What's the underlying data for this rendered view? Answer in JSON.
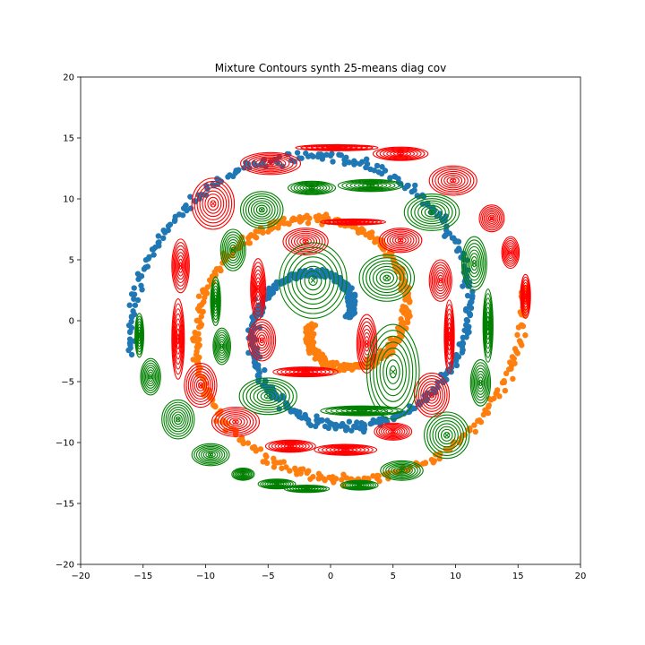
{
  "chart_data": {
    "type": "scatter",
    "title": "Mixture Contours synth 25-means diag cov",
    "xlabel": "",
    "ylabel": "",
    "xlim": [
      -20,
      20
    ],
    "ylim": [
      -20,
      20
    ],
    "x_ticks": [
      "−20",
      "−15",
      "−10",
      "−5",
      "0",
      "5",
      "10",
      "15",
      "20"
    ],
    "y_ticks": [
      "−20",
      "−15",
      "−10",
      "−5",
      "0",
      "5",
      "10",
      "15",
      "20"
    ],
    "grid": false,
    "legend": "none",
    "colors": {
      "cluster_a_points": "#1f77b4",
      "cluster_b_points": "#ff7f0e",
      "contours_a": "#ff0000",
      "contours_b": "#008000"
    },
    "series": [
      {
        "color": "#1f77b4",
        "description": "points on odd spiral arms",
        "spirals": [
          {
            "r0": 1.5,
            "r1": 16.2,
            "t0": 0.2,
            "t1": 9.6,
            "spread": 0.35,
            "n": 620
          }
        ]
      },
      {
        "color": "#ff7f0e",
        "description": "points on even spiral arms",
        "spirals": [
          {
            "r0": 1.5,
            "r1": 15.6,
            "t0": 3.34,
            "t1": 12.75,
            "spread": 0.35,
            "n": 620
          }
        ]
      }
    ],
    "components": [
      {
        "color": "#ff0000",
        "cx": 0.5,
        "cy": 14.2,
        "sx": 3.3,
        "sy": 0.25
      },
      {
        "color": "#ff0000",
        "cx": 5.6,
        "cy": 13.7,
        "sx": 2.2,
        "sy": 0.55
      },
      {
        "color": "#ff0000",
        "cx": -4.8,
        "cy": 12.9,
        "sx": 2.4,
        "sy": 0.9
      },
      {
        "color": "#ff0000",
        "cx": 9.8,
        "cy": 11.5,
        "sx": 1.9,
        "sy": 1.2
      },
      {
        "color": "#ff0000",
        "cx": -9.4,
        "cy": 9.6,
        "sx": 1.7,
        "sy": 2.1
      },
      {
        "color": "#ff0000",
        "cx": 12.9,
        "cy": 8.4,
        "sx": 1.0,
        "sy": 1.1
      },
      {
        "color": "#ff0000",
        "cx": 1.8,
        "cy": 8.1,
        "sx": 2.6,
        "sy": 0.25
      },
      {
        "color": "#ff0000",
        "cx": 5.6,
        "cy": 6.6,
        "sx": 1.7,
        "sy": 1.0
      },
      {
        "color": "#ff0000",
        "cx": -2.0,
        "cy": 6.5,
        "sx": 1.8,
        "sy": 1.1
      },
      {
        "color": "#ff0000",
        "cx": 14.4,
        "cy": 5.6,
        "sx": 0.7,
        "sy": 1.3
      },
      {
        "color": "#ff0000",
        "cx": -12.0,
        "cy": 4.5,
        "sx": 0.7,
        "sy": 2.2
      },
      {
        "color": "#ff0000",
        "cx": 8.8,
        "cy": 3.3,
        "sx": 0.9,
        "sy": 1.7
      },
      {
        "color": "#ff0000",
        "cx": 15.6,
        "cy": 2.0,
        "sx": 0.4,
        "sy": 1.8
      },
      {
        "color": "#ff0000",
        "cx": -5.8,
        "cy": 2.6,
        "sx": 0.6,
        "sy": 2.5
      },
      {
        "color": "#ff0000",
        "cx": -12.2,
        "cy": -1.5,
        "sx": 0.5,
        "sy": 3.3
      },
      {
        "color": "#ff0000",
        "cx": -5.5,
        "cy": -1.6,
        "sx": 1.1,
        "sy": 1.7
      },
      {
        "color": "#ff0000",
        "cx": 2.9,
        "cy": -1.9,
        "sx": 0.8,
        "sy": 2.4
      },
      {
        "color": "#ff0000",
        "cx": 9.5,
        "cy": -1.3,
        "sx": 0.4,
        "sy": 3.0
      },
      {
        "color": "#ff0000",
        "cx": -2.0,
        "cy": -4.2,
        "sx": 2.6,
        "sy": 0.4
      },
      {
        "color": "#ff0000",
        "cx": 8.1,
        "cy": -6.1,
        "sx": 1.4,
        "sy": 1.8
      },
      {
        "color": "#ff0000",
        "cx": -10.4,
        "cy": -5.3,
        "sx": 1.3,
        "sy": 1.8
      },
      {
        "color": "#ff0000",
        "cx": -7.6,
        "cy": -8.3,
        "sx": 1.9,
        "sy": 1.2
      },
      {
        "color": "#ff0000",
        "cx": 5.0,
        "cy": -9.1,
        "sx": 1.5,
        "sy": 0.7
      },
      {
        "color": "#ff0000",
        "cx": -3.2,
        "cy": -10.3,
        "sx": 2.0,
        "sy": 0.5
      },
      {
        "color": "#ff0000",
        "cx": 1.2,
        "cy": -10.6,
        "sx": 2.5,
        "sy": 0.45
      },
      {
        "color": "#008000",
        "cx": -1.4,
        "cy": 3.3,
        "sx": 2.7,
        "sy": 3.1
      },
      {
        "color": "#008000",
        "cx": 4.5,
        "cy": 3.5,
        "sx": 2.2,
        "sy": 1.9
      },
      {
        "color": "#008000",
        "cx": 8.1,
        "cy": 8.9,
        "sx": 2.2,
        "sy": 1.5
      },
      {
        "color": "#008000",
        "cx": -5.5,
        "cy": 9.1,
        "sx": 1.7,
        "sy": 1.5
      },
      {
        "color": "#008000",
        "cx": -1.5,
        "cy": 10.9,
        "sx": 1.9,
        "sy": 0.55
      },
      {
        "color": "#008000",
        "cx": 3.2,
        "cy": 11.1,
        "sx": 2.6,
        "sy": 0.5
      },
      {
        "color": "#008000",
        "cx": -7.8,
        "cy": 5.8,
        "sx": 1.0,
        "sy": 1.7
      },
      {
        "color": "#008000",
        "cx": 11.5,
        "cy": 4.7,
        "sx": 1.0,
        "sy": 2.2
      },
      {
        "color": "#008000",
        "cx": -9.2,
        "cy": 1.6,
        "sx": 0.4,
        "sy": 2.0
      },
      {
        "color": "#008000",
        "cx": 12.6,
        "cy": -0.4,
        "sx": 0.4,
        "sy": 3.0
      },
      {
        "color": "#008000",
        "cx": -15.3,
        "cy": -1.2,
        "sx": 0.35,
        "sy": 1.8
      },
      {
        "color": "#008000",
        "cx": -8.7,
        "cy": -2.1,
        "sx": 0.7,
        "sy": 1.5
      },
      {
        "color": "#008000",
        "cx": 5.0,
        "cy": -4.2,
        "sx": 2.1,
        "sy": 3.9
      },
      {
        "color": "#008000",
        "cx": -14.4,
        "cy": -4.6,
        "sx": 0.8,
        "sy": 1.5
      },
      {
        "color": "#008000",
        "cx": -5.0,
        "cy": -6.2,
        "sx": 2.3,
        "sy": 1.5
      },
      {
        "color": "#008000",
        "cx": 12.0,
        "cy": -5.1,
        "sx": 0.8,
        "sy": 1.9
      },
      {
        "color": "#008000",
        "cx": 2.5,
        "cy": -7.4,
        "sx": 3.3,
        "sy": 0.4
      },
      {
        "color": "#008000",
        "cx": -12.2,
        "cy": -8.1,
        "sx": 1.3,
        "sy": 1.6
      },
      {
        "color": "#008000",
        "cx": 9.3,
        "cy": -9.4,
        "sx": 1.8,
        "sy": 1.9
      },
      {
        "color": "#008000",
        "cx": -9.6,
        "cy": -11.0,
        "sx": 1.5,
        "sy": 0.9
      },
      {
        "color": "#008000",
        "cx": 5.7,
        "cy": -12.3,
        "sx": 1.7,
        "sy": 0.8
      },
      {
        "color": "#008000",
        "cx": -7.0,
        "cy": -12.6,
        "sx": 0.9,
        "sy": 0.5
      },
      {
        "color": "#008000",
        "cx": -4.3,
        "cy": -13.4,
        "sx": 1.5,
        "sy": 0.4
      },
      {
        "color": "#008000",
        "cx": -1.9,
        "cy": -13.8,
        "sx": 1.8,
        "sy": 0.3
      },
      {
        "color": "#008000",
        "cx": 2.3,
        "cy": -13.5,
        "sx": 1.5,
        "sy": 0.4
      }
    ],
    "contour_levels": 8
  }
}
